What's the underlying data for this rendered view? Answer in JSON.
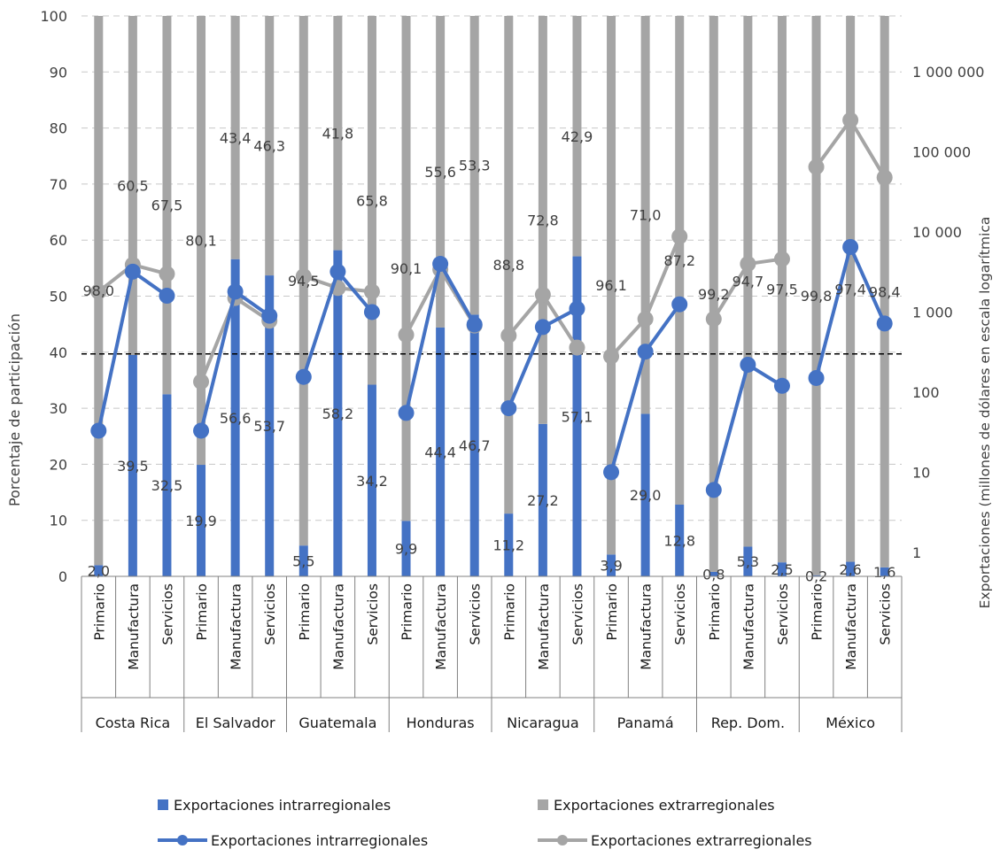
{
  "chart_data": {
    "type": "bar",
    "stacked": true,
    "title": "",
    "y_left_label": "Porcentaje de participación",
    "y_right_label": "Exportaciones  (millones de dólares en escala logarítmica",
    "y_left_range": [
      0,
      100
    ],
    "y_left_ticks": [
      "0",
      "10",
      "20",
      "30",
      "40",
      "50",
      "60",
      "70",
      "80",
      "90",
      "100"
    ],
    "y_right_scale": "log",
    "y_right_range": [
      0.5,
      5000000
    ],
    "y_right_ticks": [
      {
        "value": 1,
        "label": "1"
      },
      {
        "value": 10,
        "label": "10"
      },
      {
        "value": 100,
        "label": "100"
      },
      {
        "value": 1000,
        "label": "1 000"
      },
      {
        "value": 10000,
        "label": "10 000"
      },
      {
        "value": 100000,
        "label": "100 000"
      },
      {
        "value": 1000000,
        "label": "1 000 000"
      }
    ],
    "grid": "horizontal dashed",
    "reference_line_right_axis": 300,
    "sectors": [
      "Primario",
      "Manufactura",
      "Servicios"
    ],
    "countries": [
      "Costa Rica",
      "El Salvador",
      "Guatemala",
      "Honduras",
      "Nicaragua",
      "Panamá",
      "Rep. Dom.",
      "México"
    ],
    "bar_intra_pct": [
      [
        2.0,
        39.5,
        32.5
      ],
      [
        19.9,
        56.6,
        53.7
      ],
      [
        5.5,
        58.2,
        34.2
      ],
      [
        9.9,
        44.4,
        46.7
      ],
      [
        11.2,
        27.2,
        57.1
      ],
      [
        3.9,
        29.0,
        12.8
      ],
      [
        0.8,
        5.3,
        2.5
      ],
      [
        0.2,
        2.6,
        1.6
      ]
    ],
    "bar_extra_pct": [
      [
        98.0,
        60.5,
        67.5
      ],
      [
        80.1,
        43.4,
        46.3
      ],
      [
        94.5,
        41.8,
        65.8
      ],
      [
        90.1,
        55.6,
        53.3
      ],
      [
        88.8,
        72.8,
        42.9
      ],
      [
        96.1,
        71.0,
        87.2
      ],
      [
        99.2,
        94.7,
        97.5
      ],
      [
        99.8,
        97.4,
        98.4
      ]
    ],
    "label_intra": [
      [
        "2,0",
        "39,5",
        "32,5"
      ],
      [
        "19,9",
        "56,6",
        "53,7"
      ],
      [
        "5,5",
        "58,2",
        "34,2"
      ],
      [
        "9,9",
        "44,4",
        "46,7"
      ],
      [
        "11,2",
        "27,2",
        "57,1"
      ],
      [
        "3,9",
        "29,0",
        "12,8"
      ],
      [
        "0,8",
        "5,3",
        "2,5"
      ],
      [
        "0,2",
        "2,6",
        "1,6"
      ]
    ],
    "label_extra": [
      [
        "98,0",
        "60,5",
        "67,5"
      ],
      [
        "80,1",
        "43,4",
        "46,3"
      ],
      [
        "94,5",
        "41,8",
        "65,8"
      ],
      [
        "90,1",
        "55,6",
        "53,3"
      ],
      [
        "88,8",
        "72,8",
        "42,9"
      ],
      [
        "96,1",
        "71,0",
        "87,2"
      ],
      [
        "99,2",
        "94,7",
        "97,5"
      ],
      [
        "99,8",
        "97,4",
        "98,4"
      ]
    ],
    "line_intra_musd": [
      [
        33,
        3200,
        1600
      ],
      [
        33,
        1800,
        900
      ],
      [
        155,
        3200,
        1000
      ],
      [
        55,
        4000,
        700
      ],
      [
        63,
        650,
        1100
      ],
      [
        10,
        320,
        1250
      ],
      [
        6,
        220,
        120
      ],
      [
        150,
        6500,
        720
      ]
    ],
    "line_extra_musd": [
      [
        1800,
        3900,
        3000
      ],
      [
        135,
        1500,
        780
      ],
      [
        2800,
        2000,
        1800
      ],
      [
        520,
        3400,
        680
      ],
      [
        510,
        1650,
        360
      ],
      [
        280,
        820,
        8800
      ],
      [
        820,
        4000,
        4600
      ],
      [
        65000,
        250000,
        48000
      ]
    ],
    "legend": [
      {
        "kind": "bar",
        "label": "Exportaciones intrarregionales",
        "color": "#4472c4"
      },
      {
        "kind": "bar",
        "label": "Exportaciones extrarregionales",
        "color": "#a5a5a5"
      },
      {
        "kind": "line",
        "label": "Exportaciones intrarregionales",
        "color": "#4472c4"
      },
      {
        "kind": "line",
        "label": "Exportaciones extrarregionales",
        "color": "#a5a5a5"
      }
    ],
    "colors": {
      "intra": "#4472c4",
      "extra": "#a5a5a5"
    }
  }
}
